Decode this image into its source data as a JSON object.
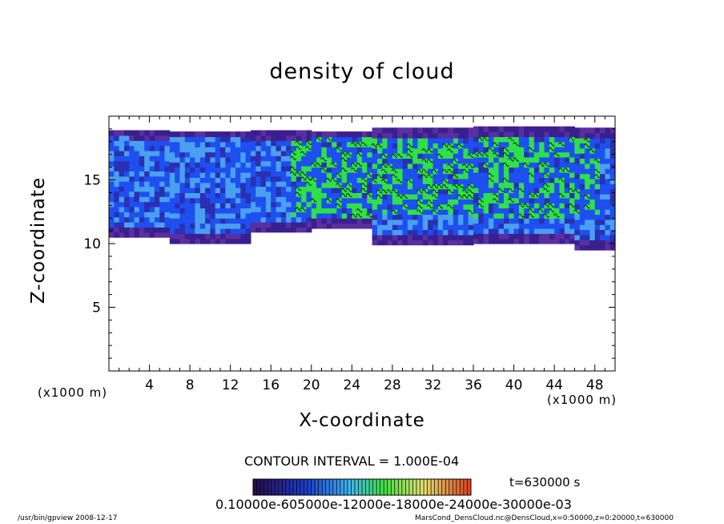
{
  "chart_data": {
    "type": "heatmap",
    "title": "density of cloud",
    "xlabel": "X-coordinate",
    "ylabel": "Z-coordinate",
    "x_unit_label": "(x1000 m)",
    "xlim": [
      0,
      50
    ],
    "ylim": [
      0,
      20
    ],
    "x_ticks": [
      "4",
      "8",
      "12",
      "16",
      "20",
      "24",
      "28",
      "32",
      "36",
      "40",
      "44",
      "48"
    ],
    "y_ticks": [
      "5",
      "10",
      "15"
    ],
    "contour_interval": "CONTOUR INTERVAL = 1.000E-04",
    "time": "t=630000 s",
    "colorbar_labels": "0.10000e-605000e-12000e-18000e-24000e-30000e-03",
    "regions": [
      {
        "x": [
          0,
          2
        ],
        "z_bottom": 10.5,
        "z_top": 18.8
      },
      {
        "x": [
          2,
          6
        ],
        "z_bottom": 10.5,
        "z_top": 18.5
      },
      {
        "x": [
          6,
          14
        ],
        "z_bottom": 10.0,
        "z_top": 18.7
      },
      {
        "x": [
          14,
          20
        ],
        "z_bottom": 10.9,
        "z_top": 18.5
      },
      {
        "x": [
          20,
          26
        ],
        "z_bottom": 11.2,
        "z_top": 18.6
      },
      {
        "x": [
          26,
          36
        ],
        "z_bottom": 9.9,
        "z_top": 18.8
      },
      {
        "x": [
          36,
          46
        ],
        "z_bottom": 10.0,
        "z_top": 18.8
      },
      {
        "x": [
          46,
          50
        ],
        "z_bottom": 9.5,
        "z_top": 18.8
      }
    ],
    "high_density_region": {
      "x": [
        18,
        48
      ],
      "z": [
        12,
        18.5
      ]
    }
  },
  "footer": {
    "left": "/usr/bin/gpview   2008-12-17",
    "right": "MarsCond_DensCloud.nc@DensCloud,x=0:50000,z=0:20000,t=630000"
  },
  "colors": {
    "low": "#3a1f8f",
    "mid": "#1e4ff0",
    "light": "#4aa0f0",
    "high": "#2fe04a"
  }
}
